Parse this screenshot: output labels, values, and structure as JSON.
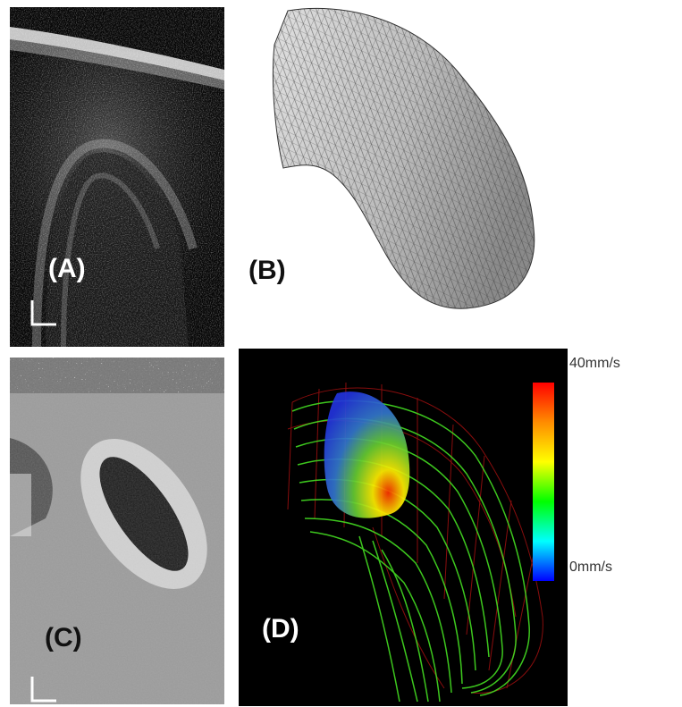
{
  "panels": {
    "a": {
      "label": "(A)"
    },
    "b": {
      "label": "(B)"
    },
    "c": {
      "label": "(C)"
    },
    "d": {
      "label": "(D)"
    }
  },
  "colorbar": {
    "max_label": "40mm/s",
    "min_label": "0mm/s",
    "colors": [
      "#ff0000",
      "#ff8c00",
      "#ffff00",
      "#00ff00",
      "#00ffff",
      "#0000ff"
    ]
  }
}
